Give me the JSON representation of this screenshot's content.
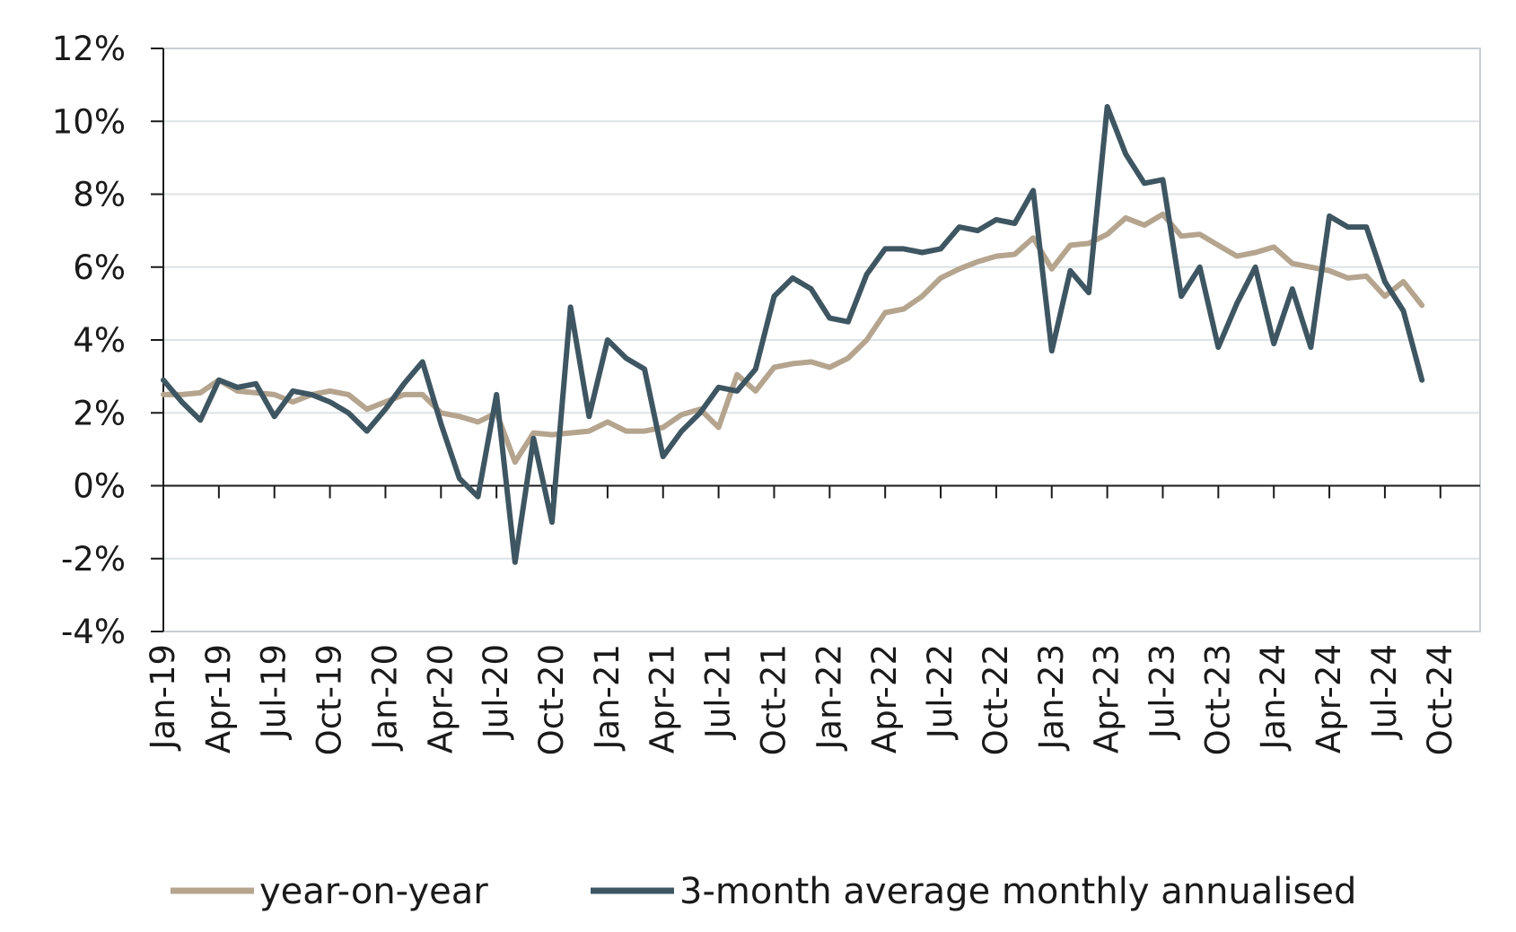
{
  "chart_data": {
    "type": "line",
    "title": "",
    "xlabel": "",
    "ylabel": "",
    "ylim": [
      -4,
      12
    ],
    "yticks": [
      "-4%",
      "-2%",
      "0%",
      "2%",
      "4%",
      "6%",
      "8%",
      "10%",
      "12%"
    ],
    "ytick_values": [
      -4,
      -2,
      0,
      2,
      4,
      6,
      8,
      10,
      12
    ],
    "xtick_labels": [
      "Jan-19",
      "Apr-19",
      "Jul-19",
      "Oct-19",
      "Jan-20",
      "Apr-20",
      "Jul-20",
      "Oct-20",
      "Jan-21",
      "Apr-21",
      "Jul-21",
      "Oct-21",
      "Jan-22",
      "Apr-22",
      "Jul-22",
      "Oct-22",
      "Jan-23",
      "Apr-23",
      "Jul-23",
      "Oct-23",
      "Jan-24",
      "Apr-24",
      "Jul-24",
      "Oct-24"
    ],
    "x_months_start": "Jan-19",
    "grid": true,
    "legend_position": "bottom",
    "series": [
      {
        "name": "year-on-year",
        "color": "#b5a48e",
        "values": [
          2.5,
          2.5,
          2.55,
          2.9,
          2.6,
          2.55,
          2.5,
          2.3,
          2.5,
          2.6,
          2.5,
          2.1,
          2.3,
          2.5,
          2.5,
          2.0,
          1.9,
          1.75,
          2.0,
          0.65,
          1.45,
          1.4,
          1.45,
          1.5,
          1.75,
          1.5,
          1.5,
          1.6,
          1.95,
          2.1,
          1.6,
          3.05,
          2.6,
          3.25,
          3.35,
          3.4,
          3.25,
          3.5,
          4.0,
          4.75,
          4.85,
          5.2,
          5.7,
          5.95,
          6.15,
          6.3,
          6.35,
          6.8,
          5.95,
          6.6,
          6.65,
          6.9,
          7.35,
          7.15,
          7.45,
          6.85,
          6.9,
          6.6,
          6.3,
          6.4,
          6.55,
          6.1,
          6.0,
          5.9,
          5.7,
          5.75,
          5.2,
          5.6,
          4.95
        ]
      },
      {
        "name": "3-month average monthly annualised",
        "color": "#3e5662",
        "values": [
          2.9,
          2.3,
          1.8,
          2.9,
          2.7,
          2.8,
          1.9,
          2.6,
          2.5,
          2.3,
          2.0,
          1.5,
          2.1,
          2.8,
          3.4,
          1.7,
          0.2,
          -0.3,
          2.5,
          -2.1,
          1.3,
          -1.0,
          4.9,
          1.9,
          4.0,
          3.5,
          3.2,
          0.8,
          1.5,
          2.0,
          2.7,
          2.6,
          3.2,
          5.2,
          5.7,
          5.4,
          4.6,
          4.5,
          5.8,
          6.5,
          6.5,
          6.4,
          6.5,
          7.1,
          7.0,
          7.3,
          7.2,
          8.1,
          3.7,
          5.9,
          5.3,
          10.4,
          9.1,
          8.3,
          8.4,
          5.2,
          6.0,
          3.8,
          5.0,
          6.0,
          3.9,
          5.4,
          3.8,
          7.4,
          7.1,
          7.1,
          5.6,
          4.8,
          2.9
        ]
      }
    ]
  }
}
